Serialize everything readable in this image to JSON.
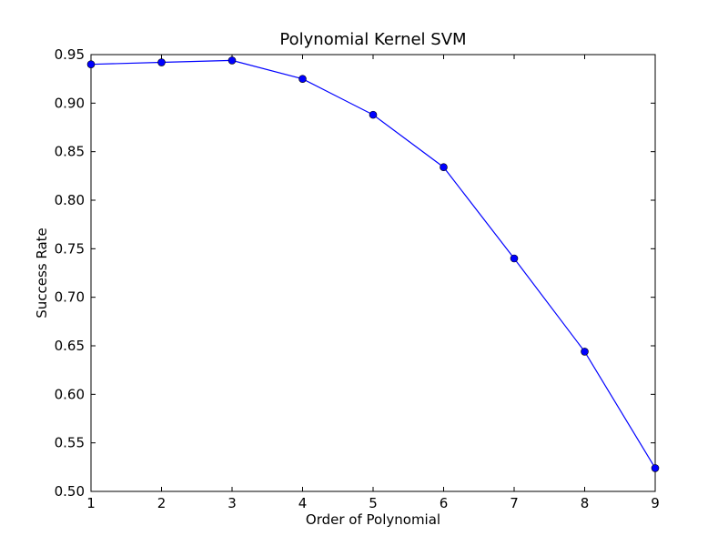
{
  "chart_data": {
    "type": "line",
    "title": "Polynomial Kernel SVM",
    "xlabel": "Order of Polynomial",
    "ylabel": "Success Rate",
    "xlim": [
      1,
      9
    ],
    "ylim": [
      0.5,
      0.95
    ],
    "xticks": [
      "1",
      "2",
      "3",
      "4",
      "5",
      "6",
      "7",
      "8",
      "9"
    ],
    "yticks": [
      "0.50",
      "0.55",
      "0.60",
      "0.65",
      "0.70",
      "0.75",
      "0.80",
      "0.85",
      "0.90",
      "0.95"
    ],
    "grid": false,
    "series": [
      {
        "color": "#0000ff",
        "marker": "circle",
        "x": [
          1,
          2,
          3,
          4,
          5,
          6,
          7,
          8,
          9
        ],
        "y": [
          0.94,
          0.942,
          0.944,
          0.925,
          0.888,
          0.834,
          0.74,
          0.644,
          0.524
        ]
      }
    ]
  }
}
